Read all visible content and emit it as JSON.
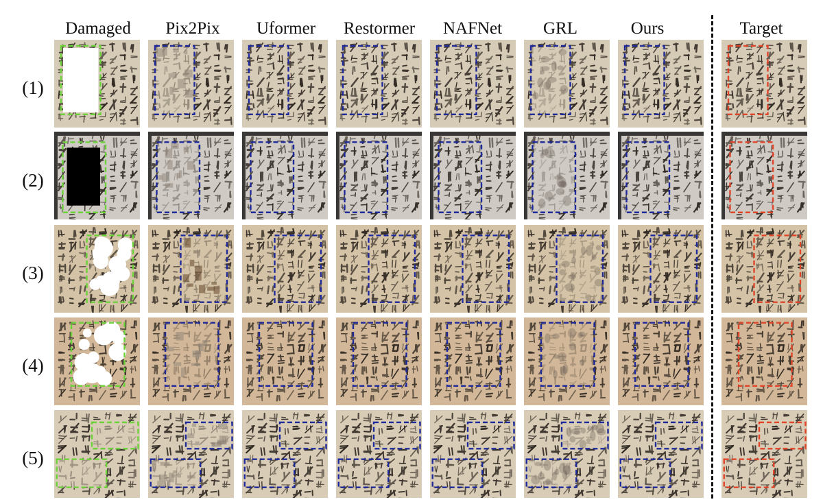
{
  "columns": [
    "Damaged",
    "Pix2Pix",
    "Uformer",
    "Restormer",
    "NAFNet",
    "GRL",
    "Ours",
    "Target"
  ],
  "rows": [
    "(1)",
    "(2)",
    "(3)",
    "(4)",
    "(5)"
  ],
  "colors": {
    "damaged_box": "#6bd23a",
    "method_box": "#1f2a9a",
    "target_box": "#e0452a",
    "paper_row1": "#d6cbb6",
    "paper_row2": "#cfcbc4",
    "paper_row3": "#d4c3a6",
    "paper_row4": "#d2b898",
    "paper_row5": "#d8ccb6",
    "ink": "#2a231d"
  },
  "damage": [
    "white-rect",
    "black-rect",
    "white-blobs",
    "white-blobs",
    "faded-text"
  ]
}
